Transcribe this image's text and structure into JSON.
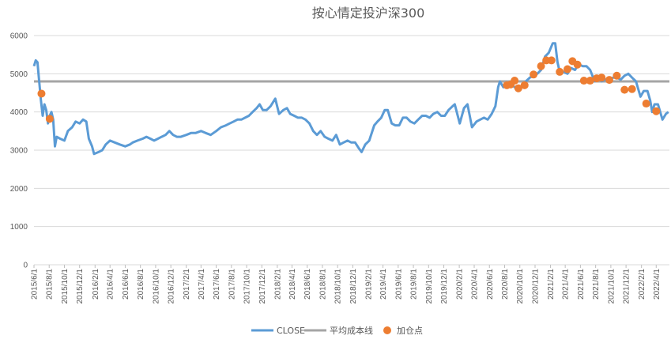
{
  "chart_data": {
    "type": "line",
    "title": "按心情定投沪深300",
    "y_ticks": [
      "0",
      "1000",
      "2000",
      "3000",
      "4000",
      "5000",
      "6000"
    ],
    "ylim": [
      0,
      6000
    ],
    "x_ticks": [
      "2015/6/1",
      "2015/8/1",
      "2015/10/1",
      "2015/12/1",
      "2016/2/1",
      "2016/4/1",
      "2016/6/1",
      "2016/8/1",
      "2016/10/1",
      "2016/12/1",
      "2017/2/1",
      "2017/4/1",
      "2017/6/1",
      "2017/8/1",
      "2017/10/1",
      "2017/12/1",
      "2018/2/1",
      "2018/4/1",
      "2018/6/1",
      "2018/8/1",
      "2018/10/1",
      "2018/12/1",
      "2019/2/1",
      "2019/4/1",
      "2019/6/1",
      "2019/8/1",
      "2019/10/1",
      "2019/12/1",
      "2020/2/1",
      "2020/4/1",
      "2020/6/1",
      "2020/8/1",
      "2020/10/1",
      "2020/12/1",
      "2021/2/1",
      "2021/4/1",
      "2021/6/1",
      "2021/8/1",
      "2021/10/1",
      "2021/12/1",
      "2022/2/1",
      "2022/4/1"
    ],
    "series": [
      {
        "name": "CLOSE",
        "color": "#5B9BD5",
        "points": [
          [
            "2015/6/1",
            5200
          ],
          [
            "2015/6/8",
            5350
          ],
          [
            "2015/6/15",
            5300
          ],
          [
            "2015/6/22",
            4800
          ],
          [
            "2015/6/29",
            4300
          ],
          [
            "2015/7/6",
            3900
          ],
          [
            "2015/7/13",
            4200
          ],
          [
            "2015/7/20",
            4050
          ],
          [
            "2015/7/27",
            3700
          ],
          [
            "2015/8/3",
            3900
          ],
          [
            "2015/8/10",
            4000
          ],
          [
            "2015/8/17",
            3800
          ],
          [
            "2015/8/24",
            3100
          ],
          [
            "2015/8/31",
            3350
          ],
          [
            "2015/9/14",
            3300
          ],
          [
            "2015/10/1",
            3250
          ],
          [
            "2015/10/15",
            3500
          ],
          [
            "2015/11/1",
            3600
          ],
          [
            "2015/11/15",
            3750
          ],
          [
            "2015/12/1",
            3700
          ],
          [
            "2015/12/15",
            3800
          ],
          [
            "2015/12/28",
            3750
          ],
          [
            "2016/1/7",
            3300
          ],
          [
            "2016/1/20",
            3100
          ],
          [
            "2016/1/28",
            2900
          ],
          [
            "2016/2/15",
            2950
          ],
          [
            "2016/3/1",
            3000
          ],
          [
            "2016/3/15",
            3150
          ],
          [
            "2016/4/1",
            3250
          ],
          [
            "2016/4/20",
            3200
          ],
          [
            "2016/5/10",
            3150
          ],
          [
            "2016/6/1",
            3100
          ],
          [
            "2016/6/20",
            3150
          ],
          [
            "2016/7/1",
            3200
          ],
          [
            "2016/7/20",
            3250
          ],
          [
            "2016/8/10",
            3300
          ],
          [
            "2016/8/25",
            3350
          ],
          [
            "2016/9/10",
            3300
          ],
          [
            "2016/9/25",
            3250
          ],
          [
            "2016/10/10",
            3300
          ],
          [
            "2016/10/25",
            3350
          ],
          [
            "2016/11/10",
            3400
          ],
          [
            "2016/11/25",
            3500
          ],
          [
            "2016/12/10",
            3400
          ],
          [
            "2016/12/25",
            3350
          ],
          [
            "2017/1/10",
            3350
          ],
          [
            "2017/2/1",
            3400
          ],
          [
            "2017/2/20",
            3450
          ],
          [
            "2017/3/10",
            3450
          ],
          [
            "2017/4/1",
            3500
          ],
          [
            "2017/4/20",
            3450
          ],
          [
            "2017/5/10",
            3400
          ],
          [
            "2017/6/1",
            3500
          ],
          [
            "2017/6/20",
            3600
          ],
          [
            "2017/7/10",
            3650
          ],
          [
            "2017/7/25",
            3700
          ],
          [
            "2017/8/10",
            3750
          ],
          [
            "2017/8/25",
            3800
          ],
          [
            "2017/9/10",
            3800
          ],
          [
            "2017/9/25",
            3850
          ],
          [
            "2017/10/10",
            3900
          ],
          [
            "2017/10/25",
            4000
          ],
          [
            "2017/11/10",
            4100
          ],
          [
            "2017/11/22",
            4200
          ],
          [
            "2017/12/5",
            4050
          ],
          [
            "2017/12/20",
            4050
          ],
          [
            "2018/1/5",
            4150
          ],
          [
            "2018/1/24",
            4350
          ],
          [
            "2018/2/8",
            3950
          ],
          [
            "2018/2/25",
            4050
          ],
          [
            "2018/3/12",
            4100
          ],
          [
            "2018/3/25",
            3950
          ],
          [
            "2018/4/10",
            3900
          ],
          [
            "2018/4/25",
            3850
          ],
          [
            "2018/5/10",
            3850
          ],
          [
            "2018/5/25",
            3800
          ],
          [
            "2018/6/10",
            3700
          ],
          [
            "2018/6/25",
            3500
          ],
          [
            "2018/7/10",
            3400
          ],
          [
            "2018/7/25",
            3500
          ],
          [
            "2018/8/10",
            3350
          ],
          [
            "2018/8/25",
            3300
          ],
          [
            "2018/9/10",
            3250
          ],
          [
            "2018/9/25",
            3400
          ],
          [
            "2018/10/10",
            3150
          ],
          [
            "2018/10/25",
            3200
          ],
          [
            "2018/11/10",
            3250
          ],
          [
            "2018/11/25",
            3200
          ],
          [
            "2018/12/10",
            3200
          ],
          [
            "2018/12/25",
            3050
          ],
          [
            "2019/1/5",
            2950
          ],
          [
            "2019/1/20",
            3150
          ],
          [
            "2019/2/5",
            3250
          ],
          [
            "2019/2/25",
            3650
          ],
          [
            "2019/3/10",
            3750
          ],
          [
            "2019/3/25",
            3850
          ],
          [
            "2019/4/8",
            4050
          ],
          [
            "2019/4/20",
            4050
          ],
          [
            "2019/5/6",
            3700
          ],
          [
            "2019/5/20",
            3650
          ],
          [
            "2019/6/5",
            3650
          ],
          [
            "2019/6/20",
            3850
          ],
          [
            "2019/7/5",
            3850
          ],
          [
            "2019/7/20",
            3750
          ],
          [
            "2019/8/5",
            3700
          ],
          [
            "2019/8/20",
            3800
          ],
          [
            "2019/9/5",
            3900
          ],
          [
            "2019/9/20",
            3900
          ],
          [
            "2019/10/5",
            3850
          ],
          [
            "2019/10/20",
            3950
          ],
          [
            "2019/11/5",
            4000
          ],
          [
            "2019/11/20",
            3900
          ],
          [
            "2019/12/5",
            3900
          ],
          [
            "2019/12/20",
            4050
          ],
          [
            "2020/1/5",
            4150
          ],
          [
            "2020/1/14",
            4200
          ],
          [
            "2020/2/3",
            3700
          ],
          [
            "2020/2/20",
            4100
          ],
          [
            "2020/3/5",
            4200
          ],
          [
            "2020/3/23",
            3600
          ],
          [
            "2020/4/10",
            3750
          ],
          [
            "2020/4/25",
            3800
          ],
          [
            "2020/5/10",
            3850
          ],
          [
            "2020/5/25",
            3800
          ],
          [
            "2020/6/10",
            3950
          ],
          [
            "2020/6/25",
            4150
          ],
          [
            "2020/7/6",
            4650
          ],
          [
            "2020/7/13",
            4800
          ],
          [
            "2020/7/27",
            4650
          ],
          [
            "2020/8/10",
            4700
          ],
          [
            "2020/8/25",
            4750
          ],
          [
            "2020/9/10",
            4650
          ],
          [
            "2020/9/25",
            4550
          ],
          [
            "2020/10/10",
            4700
          ],
          [
            "2020/10/25",
            4800
          ],
          [
            "2020/11/10",
            4900
          ],
          [
            "2020/11/25",
            4950
          ],
          [
            "2020/12/10",
            5000
          ],
          [
            "2020/12/25",
            5100
          ],
          [
            "2021/1/10",
            5450
          ],
          [
            "2021/1/25",
            5550
          ],
          [
            "2021/2/10",
            5800
          ],
          [
            "2021/2/20",
            5800
          ],
          [
            "2021/3/1",
            5300
          ],
          [
            "2021/3/10",
            5050
          ],
          [
            "2021/3/25",
            5050
          ],
          [
            "2021/4/10",
            5000
          ],
          [
            "2021/4/25",
            5150
          ],
          [
            "2021/5/10",
            5100
          ],
          [
            "2021/5/25",
            5250
          ],
          [
            "2021/6/10",
            5200
          ],
          [
            "2021/6/25",
            5200
          ],
          [
            "2021/7/10",
            5100
          ],
          [
            "2021/7/28",
            4800
          ],
          [
            "2021/8/10",
            4900
          ],
          [
            "2021/8/25",
            4800
          ],
          [
            "2021/9/10",
            4850
          ],
          [
            "2021/9/25",
            4850
          ],
          [
            "2021/10/10",
            4900
          ],
          [
            "2021/10/25",
            4900
          ],
          [
            "2021/11/10",
            4850
          ],
          [
            "2021/11/25",
            4950
          ],
          [
            "2021/12/10",
            5000
          ],
          [
            "2021/12/25",
            4900
          ],
          [
            "2022/1/10",
            4800
          ],
          [
            "2022/1/28",
            4400
          ],
          [
            "2022/2/10",
            4550
          ],
          [
            "2022/2/25",
            4550
          ],
          [
            "2022/3/8",
            4300
          ],
          [
            "2022/3/16",
            4000
          ],
          [
            "2022/3/25",
            4200
          ],
          [
            "2022/4/8",
            4200
          ],
          [
            "2022/4/26",
            3800
          ],
          [
            "2022/5/10",
            3950
          ],
          [
            "2022/5/20",
            4000
          ]
        ]
      },
      {
        "name": "平均成本线",
        "color": "#A5A5A5",
        "value": 4800
      },
      {
        "name": "加仓点",
        "color": "#ED7D31",
        "points": [
          [
            "2015/7/1",
            4480
          ],
          [
            "2015/8/3",
            3820
          ],
          [
            "2020/8/10",
            4700
          ],
          [
            "2020/8/25",
            4720
          ],
          [
            "2020/9/10",
            4820
          ],
          [
            "2020/9/25",
            4620
          ],
          [
            "2020/10/20",
            4700
          ],
          [
            "2020/11/25",
            4980
          ],
          [
            "2020/12/25",
            5200
          ],
          [
            "2021/1/15",
            5350
          ],
          [
            "2021/2/5",
            5350
          ],
          [
            "2021/3/10",
            5050
          ],
          [
            "2021/4/10",
            5120
          ],
          [
            "2021/4/30",
            5330
          ],
          [
            "2021/5/20",
            5240
          ],
          [
            "2021/6/15",
            4820
          ],
          [
            "2021/7/10",
            4820
          ],
          [
            "2021/8/5",
            4880
          ],
          [
            "2021/8/25",
            4900
          ],
          [
            "2021/9/25",
            4840
          ],
          [
            "2021/10/25",
            4950
          ],
          [
            "2021/11/25",
            4580
          ],
          [
            "2021/12/25",
            4600
          ],
          [
            "2022/2/20",
            4220
          ],
          [
            "2022/4/1",
            4020
          ]
        ]
      }
    ],
    "legend": [
      "CLOSE",
      "平均成本线",
      "加仓点"
    ],
    "legend_position": "bottom",
    "grid": true
  }
}
